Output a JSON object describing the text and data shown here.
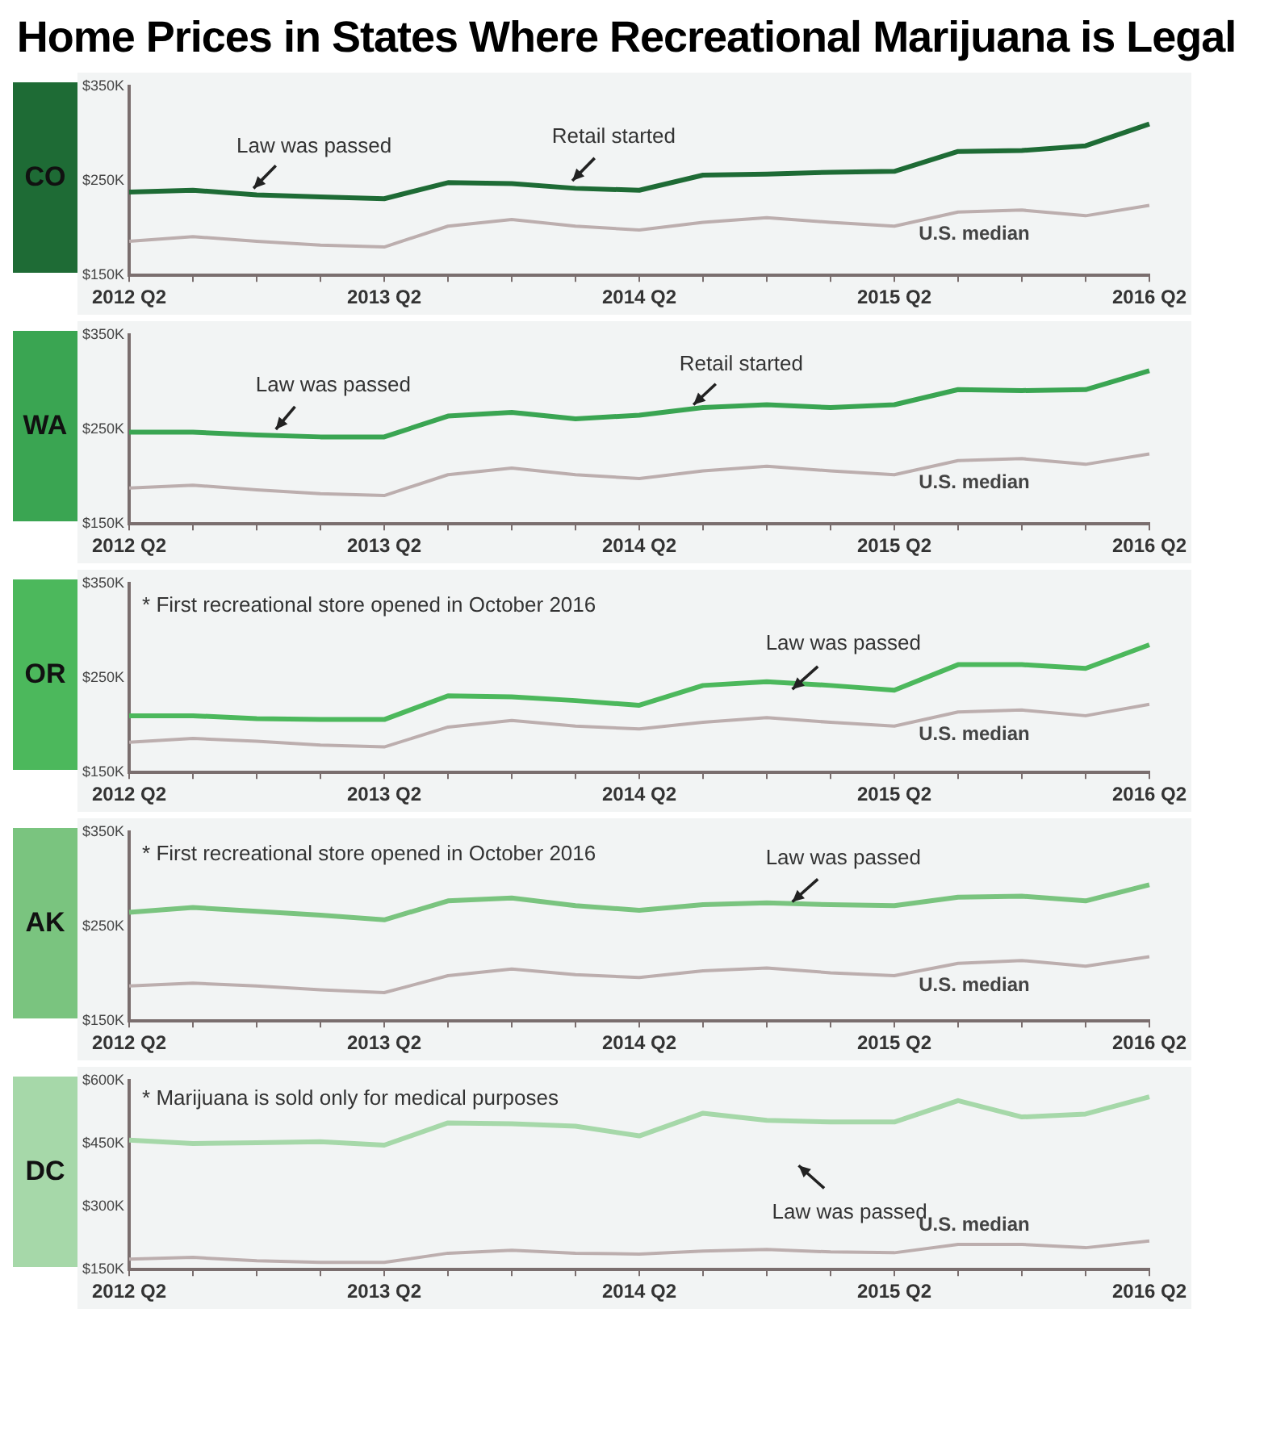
{
  "chart_data": [
    {
      "type": "line",
      "title": "Home Prices in States Where Recreational Marijuana is Legal",
      "ylabel": "CO",
      "categories": [
        "2012 Q2",
        null,
        null,
        null,
        "2013 Q2",
        null,
        null,
        null,
        "2014 Q2",
        null,
        null,
        null,
        "2015 Q2",
        null,
        null,
        null,
        "2016 Q2"
      ],
      "series": [
        {
          "color": "#1e6b35",
          "values": [
            238,
            240,
            235,
            233,
            231,
            248,
            247,
            242,
            240,
            256,
            257,
            259,
            260,
            281,
            282,
            287,
            310
          ]
        },
        {
          "name": "U.S. median",
          "color": "#bcaeae",
          "values": [
            186,
            191,
            186,
            182,
            180,
            202,
            209,
            202,
            198,
            206,
            211,
            206,
            202,
            217,
            219,
            213,
            224
          ]
        }
      ],
      "ylim": [
        150,
        350
      ],
      "yticks": [
        {
          "value": 150,
          "label": "$150K"
        },
        {
          "value": 250,
          "label": "$250K"
        },
        {
          "value": 350,
          "label": "$350K"
        }
      ],
      "annotations": [
        "Law was passed",
        "Retail started"
      ],
      "grid": false,
      "legend": false,
      "marker": "none"
    },
    {
      "type": "line",
      "ylabel": "WA",
      "categories": [
        "2012 Q2",
        null,
        null,
        null,
        "2013 Q2",
        null,
        null,
        null,
        "2014 Q2",
        null,
        null,
        null,
        "2015 Q2",
        null,
        null,
        null,
        "2016 Q2"
      ],
      "series": [
        {
          "color": "#3aa552",
          "values": [
            247,
            247,
            244,
            242,
            242,
            264,
            268,
            261,
            265,
            273,
            276,
            273,
            276,
            292,
            291,
            292,
            312
          ]
        },
        {
          "name": "U.S. median",
          "color": "#bcaeae",
          "values": [
            188,
            191,
            186,
            182,
            180,
            202,
            209,
            202,
            198,
            206,
            211,
            206,
            202,
            217,
            219,
            213,
            224
          ]
        }
      ],
      "ylim": [
        150,
        350
      ],
      "yticks": [
        {
          "value": 150,
          "label": "$150K"
        },
        {
          "value": 250,
          "label": "$250K"
        },
        {
          "value": 350,
          "label": "$350K"
        }
      ],
      "annotations": [
        "Law was passed",
        "Retail started"
      ],
      "grid": false,
      "legend": false,
      "marker": "none"
    },
    {
      "type": "line",
      "ylabel": "OR",
      "categories": [
        "2012 Q2",
        null,
        null,
        null,
        "2013 Q2",
        null,
        null,
        null,
        "2014 Q2",
        null,
        null,
        null,
        "2015 Q2",
        null,
        null,
        null,
        "2016 Q2"
      ],
      "series": [
        {
          "color": "#4cb85c",
          "values": [
            210,
            210,
            207,
            206,
            206,
            231,
            230,
            226,
            221,
            242,
            246,
            242,
            237,
            264,
            264,
            260,
            285
          ]
        },
        {
          "name": "U.S. median",
          "color": "#bcaeae",
          "values": [
            182,
            186,
            183,
            179,
            177,
            198,
            205,
            199,
            196,
            203,
            208,
            203,
            199,
            214,
            216,
            210,
            222
          ]
        }
      ],
      "ylim": [
        150,
        350
      ],
      "yticks": [
        {
          "value": 150,
          "label": "$150K"
        },
        {
          "value": 250,
          "label": "$250K"
        },
        {
          "value": 350,
          "label": "$350K"
        }
      ],
      "annotations": [
        "* First recreational store opened in October 2016",
        "Law was passed"
      ],
      "grid": false,
      "legend": false,
      "marker": "none"
    },
    {
      "type": "line",
      "ylabel": "AK",
      "categories": [
        "2012 Q2",
        null,
        null,
        null,
        "2013 Q2",
        null,
        null,
        null,
        "2014 Q2",
        null,
        null,
        null,
        "2015 Q2",
        null,
        null,
        null,
        "2016 Q2"
      ],
      "series": [
        {
          "color": "#7ac47f",
          "values": [
            265,
            270,
            266,
            262,
            257,
            277,
            280,
            272,
            267,
            273,
            275,
            273,
            272,
            281,
            282,
            277,
            294
          ]
        },
        {
          "name": "U.S. median",
          "color": "#bcaeae",
          "values": [
            187,
            190,
            187,
            183,
            180,
            198,
            205,
            199,
            196,
            203,
            206,
            201,
            198,
            211,
            214,
            208,
            218
          ]
        }
      ],
      "ylim": [
        150,
        350
      ],
      "yticks": [
        {
          "value": 150,
          "label": "$150K"
        },
        {
          "value": 250,
          "label": "$250K"
        },
        {
          "value": 350,
          "label": "$350K"
        }
      ],
      "annotations": [
        "* First recreational store opened in October 2016",
        "Law was passed"
      ],
      "grid": false,
      "legend": false,
      "marker": "none"
    },
    {
      "type": "line",
      "ylabel": "DC",
      "categories": [
        "2012 Q2",
        null,
        null,
        null,
        "2013 Q2",
        null,
        null,
        null,
        "2014 Q2",
        null,
        null,
        null,
        "2015 Q2",
        null,
        null,
        null,
        "2016 Q2"
      ],
      "series": [
        {
          "color": "#a6d8a9",
          "values": [
            458,
            450,
            452,
            454,
            446,
            499,
            497,
            491,
            468,
            522,
            505,
            501,
            501,
            552,
            513,
            520,
            561
          ]
        },
        {
          "name": "U.S. median",
          "color": "#bcaeae",
          "values": [
            175,
            179,
            171,
            167,
            167,
            189,
            196,
            189,
            187,
            194,
            198,
            192,
            190,
            210,
            210,
            202,
            218
          ]
        }
      ],
      "ylim": [
        150,
        600
      ],
      "yticks": [
        {
          "value": 150,
          "label": "$150K"
        },
        {
          "value": 300,
          "label": "$300K"
        },
        {
          "value": 450,
          "label": "$450K"
        },
        {
          "value": 600,
          "label": "$600K"
        }
      ],
      "annotations": [
        "* Marijuana is sold only for medical purposes",
        "Law was passed"
      ],
      "grid": false,
      "legend": false,
      "marker": "none"
    }
  ]
}
